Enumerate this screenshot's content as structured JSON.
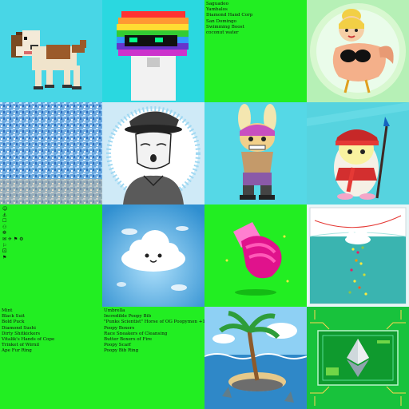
{
  "grid": {
    "cells": [
      {
        "id": "dog",
        "kind": "image",
        "subject": "pixel-art brown and white dog",
        "bg": "#48d6e6"
      },
      {
        "id": "rainbow-head",
        "kind": "image",
        "subject": "pixel-art rainbow-haired head with shades",
        "bg": "#2ad8e0"
      },
      {
        "id": "attributes-1",
        "kind": "text",
        "bg": "#22ee22",
        "lines": [
          "Saguadeo",
          "Yambalos",
          "Diamond Hand Corp",
          "San Domingo",
          "Swimming Boost",
          "coconut water"
        ]
      },
      {
        "id": "chicken-lady",
        "kind": "image",
        "subject": "cartoon chicken with blonde bun",
        "bg": "#b6f0b6"
      },
      {
        "id": "pixel-noise",
        "kind": "image",
        "subject": "blue glitter noise texture",
        "bg": "#7fb9e4"
      },
      {
        "id": "pilot-girl",
        "kind": "image",
        "subject": "comic-style woman in pilot cap",
        "bg": "#cfeaf7"
      },
      {
        "id": "bunny-hero",
        "kind": "image",
        "subject": "bunny-eared cartoon character",
        "bg": "#55d8e6"
      },
      {
        "id": "penguin-warrior",
        "kind": "image",
        "subject": "penguin with red bandana and spear",
        "bg": "#4fd0dd"
      },
      {
        "id": "attributes-icons",
        "kind": "icons",
        "bg": "#22ee22",
        "lines": [
          "☺",
          "⚓",
          "☐",
          "⚇",
          "❁",
          "✉ ✈ ⚑ ⚙",
          "⚐",
          "⚀",
          "⚑"
        ]
      },
      {
        "id": "cloud",
        "kind": "image",
        "subject": "smiling cloud in blue sky",
        "bg": "#5fb8e8"
      },
      {
        "id": "pink-glove",
        "kind": "image",
        "subject": "pink boxing glove",
        "bg": "#22ee22"
      },
      {
        "id": "rain-cloud",
        "kind": "image",
        "subject": "cloud dropping colorful rain over sea",
        "bg": "#e8f6f7"
      },
      {
        "id": "attributes-2",
        "kind": "text",
        "bg": "#22ee22",
        "lines": [
          "Mint",
          "Black Suit",
          "Bold Puck",
          "Diamond Sushi",
          "Dirty Shitkickers",
          "Vitalik's Hands of Cope",
          "Trinket of Wirnil",
          "Ape Fur Ring"
        ]
      },
      {
        "id": "attributes-3",
        "kind": "text",
        "bg": "#22ee22",
        "lines": [
          "Umbrella",
          "Incredible Poopy Bib",
          "\"Punks Scientist\" Horse of OG Poopymon +1",
          "Poopy Boxers",
          "Race Sneakers of Cleansing",
          "Butter Boxers of Fire",
          "Poopy Scarf",
          "Poopy Bib Ring"
        ]
      },
      {
        "id": "island",
        "kind": "image",
        "subject": "cartoon palm-tree island with sharks",
        "bg": "#7fc8f0"
      },
      {
        "id": "circuit-eth",
        "kind": "image",
        "subject": "green circuit board with ethereum logo",
        "bg": "#1fd84a"
      }
    ]
  },
  "colors": {
    "green": "#22ee22",
    "cyan": "#48d6e6"
  }
}
